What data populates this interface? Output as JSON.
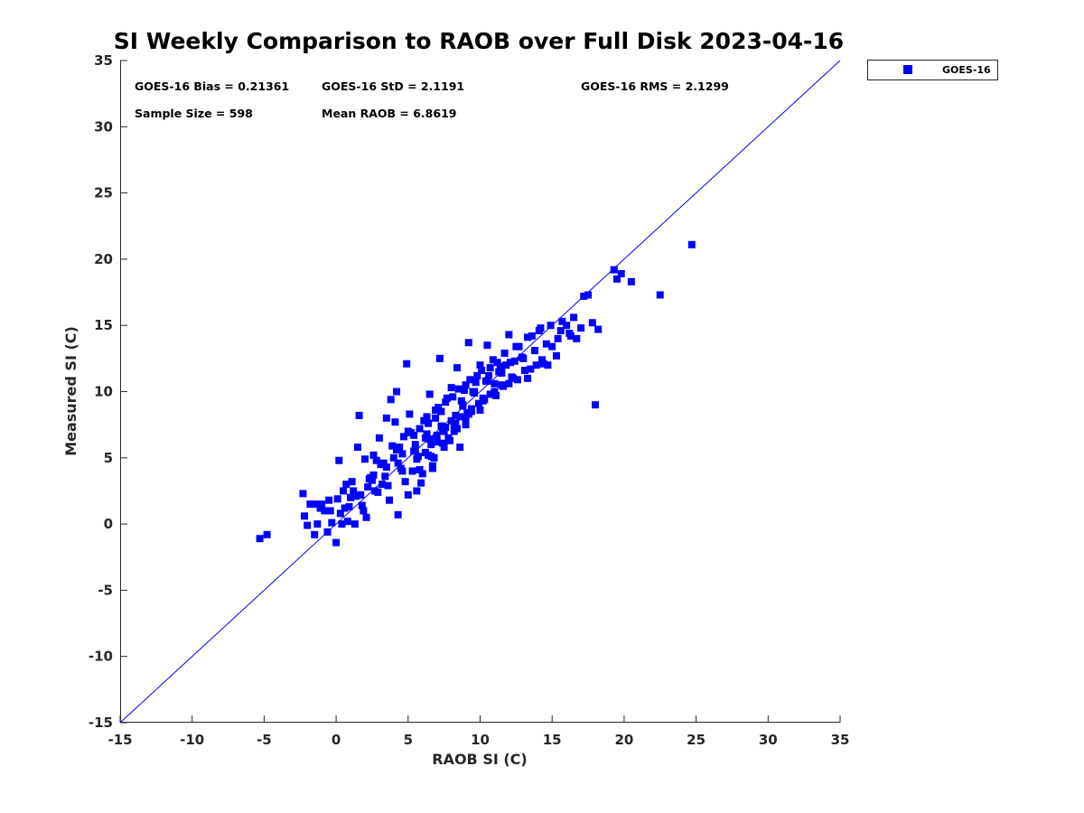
{
  "colors": {
    "series": "#0000ff",
    "axis": "#262626",
    "ref_line": "#0000ff"
  },
  "stats": {
    "bias": "GOES-16 Bias = 0.21361",
    "std": "GOES-16 StD = 2.1191",
    "rms": "GOES-16 RMS = 2.1299",
    "sample": "Sample Size = 598",
    "mean": "Mean RAOB = 6.8619"
  },
  "chart_data": {
    "type": "scatter",
    "title": "SI Weekly Comparison to RAOB over Full Disk 2023-04-16",
    "xlabel": "RAOB SI (C)",
    "ylabel": "Measured SI (C)",
    "xlim": [
      -15,
      35
    ],
    "ylim": [
      -15,
      35
    ],
    "xticks": [
      -15,
      -10,
      -5,
      0,
      5,
      10,
      15,
      20,
      25,
      30,
      35
    ],
    "yticks": [
      -15,
      -10,
      -5,
      0,
      5,
      10,
      15,
      20,
      25,
      30,
      35
    ],
    "grid": false,
    "legend_position": "top-right-outside",
    "reference_line": {
      "x": [
        -15,
        35
      ],
      "y": [
        -15,
        35
      ]
    },
    "series": [
      {
        "name": "GOES-16",
        "marker": "square",
        "x": [
          -5.3,
          -4.8,
          -2.3,
          -2.2,
          -2.0,
          -1.8,
          -1.5,
          -1.5,
          -1.3,
          -1.1,
          -1.0,
          -0.8,
          -0.6,
          -0.5,
          -0.4,
          -0.3,
          0.0,
          0.1,
          0.2,
          0.4,
          0.5,
          0.6,
          0.7,
          0.8,
          1.0,
          1.1,
          1.3,
          1.5,
          1.6,
          1.8,
          2.0,
          2.1,
          2.2,
          2.4,
          2.6,
          2.7,
          3.0,
          3.2,
          3.5,
          3.7,
          3.8,
          4.0,
          4.1,
          4.2,
          4.3,
          4.5,
          4.7,
          4.9,
          5.0,
          5.1,
          5.3,
          5.5,
          5.6,
          5.8,
          6.0,
          6.2,
          6.4,
          6.5,
          6.7,
          6.9,
          7.0,
          7.2,
          7.4,
          7.6,
          7.8,
          8.0,
          8.2,
          8.4,
          8.6,
          8.8,
          9.0,
          9.2,
          9.4,
          9.6,
          9.8,
          10.0,
          10.2,
          10.5,
          10.7,
          11.0,
          11.2,
          11.5,
          11.8,
          12.0,
          12.2,
          12.4,
          12.7,
          13.0,
          13.3,
          13.6,
          13.9,
          14.2,
          14.4,
          14.7,
          15.0,
          15.3,
          15.6,
          16.0,
          16.3,
          16.7,
          17.2,
          17.5,
          17.8,
          18.0,
          18.2,
          19.3,
          19.5,
          19.8,
          20.5,
          22.5,
          24.7,
          1.2,
          2.3,
          3.1,
          4.4,
          5.2,
          6.1,
          6.9,
          7.7,
          8.5,
          9.3,
          10.1,
          10.9,
          11.7,
          12.5,
          13.3,
          14.1,
          14.9,
          15.7,
          16.5,
          3.6,
          4.6,
          5.7,
          6.6,
          7.5,
          8.3,
          9.1,
          9.9,
          10.7,
          11.5,
          12.3,
          13.1,
          2.8,
          3.9,
          5.0,
          6.3,
          7.1,
          8.1,
          8.9,
          9.7,
          10.6,
          11.4,
          12.9,
          13.8,
          14.6,
          15.4,
          16.2,
          17.0,
          0.3,
          1.4,
          2.5,
          3.3,
          4.2,
          5.4,
          6.4,
          7.3,
          8.7,
          9.5,
          10.4,
          11.3,
          12.1,
          6.8,
          7.9,
          9.0,
          10.0,
          11.1,
          12.6,
          13.5,
          14.3,
          5.9,
          6.7,
          7.5,
          8.4,
          9.2,
          10.3,
          11.6,
          1.9,
          2.9,
          4.8,
          5.6,
          6.2,
          7.0,
          8.0,
          8.8,
          9.6,
          10.5,
          3.4,
          4.3,
          5.4,
          6.5,
          7.6,
          8.6,
          9.4,
          10.2,
          11.0,
          12.0,
          5.8,
          6.6,
          7.4,
          8.2,
          9.0,
          0.9,
          1.7,
          2.6,
          3.5,
          4.6,
          5.5,
          6.3,
          7.3,
          8.3
        ],
        "y": [
          -1.1,
          -0.8,
          2.3,
          0.6,
          -0.1,
          1.5,
          -0.8,
          1.5,
          0.0,
          1.2,
          1.5,
          1.0,
          -0.6,
          1.8,
          1.0,
          0.1,
          -1.4,
          1.9,
          4.8,
          0.0,
          2.5,
          1.2,
          3.0,
          0.2,
          2.0,
          3.2,
          0.0,
          5.8,
          8.2,
          1.4,
          4.9,
          0.5,
          2.8,
          3.5,
          5.2,
          2.5,
          6.5,
          3.0,
          8.0,
          1.8,
          9.4,
          5.0,
          7.7,
          10.0,
          0.7,
          4.2,
          6.6,
          12.1,
          2.2,
          8.3,
          4.0,
          5.6,
          2.5,
          7.2,
          3.8,
          6.5,
          5.2,
          9.8,
          4.2,
          8.0,
          6.2,
          12.5,
          7.0,
          9.2,
          6.5,
          10.3,
          7.5,
          11.8,
          5.8,
          9.0,
          10.5,
          13.7,
          8.5,
          10.0,
          11.2,
          12.0,
          9.5,
          13.5,
          11.8,
          10.6,
          12.2,
          11.4,
          12.0,
          14.3,
          11.1,
          12.3,
          13.4,
          12.5,
          11.0,
          14.2,
          12.0,
          14.8,
          12.1,
          12.0,
          13.4,
          12.7,
          14.6,
          15.0,
          14.2,
          14.0,
          17.2,
          17.3,
          15.2,
          9.0,
          14.7,
          19.2,
          18.5,
          18.9,
          18.3,
          17.3,
          21.1,
          2.5,
          3.4,
          4.5,
          5.8,
          6.9,
          7.8,
          8.6,
          9.5,
          10.2,
          10.9,
          11.6,
          12.4,
          12.9,
          13.4,
          14.1,
          14.6,
          15.0,
          15.3,
          15.6,
          2.9,
          4.0,
          5.1,
          6.0,
          7.0,
          7.6,
          8.4,
          9.1,
          9.8,
          10.5,
          11.0,
          11.6,
          4.8,
          5.9,
          7.0,
          8.1,
          8.8,
          9.6,
          10.1,
          10.7,
          11.2,
          11.9,
          12.6,
          13.1,
          13.6,
          14.0,
          14.4,
          14.8,
          0.8,
          2.1,
          3.3,
          4.6,
          5.6,
          6.7,
          7.6,
          8.5,
          9.3,
          10.0,
          10.8,
          11.5,
          12.2,
          5.0,
          6.3,
          7.5,
          8.6,
          9.7,
          10.9,
          11.7,
          12.4,
          3.1,
          4.4,
          5.8,
          7.2,
          8.3,
          9.4,
          10.4,
          1.0,
          2.4,
          3.2,
          4.9,
          5.4,
          6.7,
          7.8,
          8.9,
          9.9,
          10.8,
          3.6,
          4.6,
          5.5,
          6.4,
          7.3,
          8.1,
          8.7,
          9.3,
          10.0,
          10.6,
          4.1,
          5.1,
          6.1,
          7.0,
          7.9,
          1.3,
          2.2,
          3.7,
          4.3,
          5.3,
          6.0,
          6.8,
          7.4,
          8.2
        ]
      }
    ]
  }
}
